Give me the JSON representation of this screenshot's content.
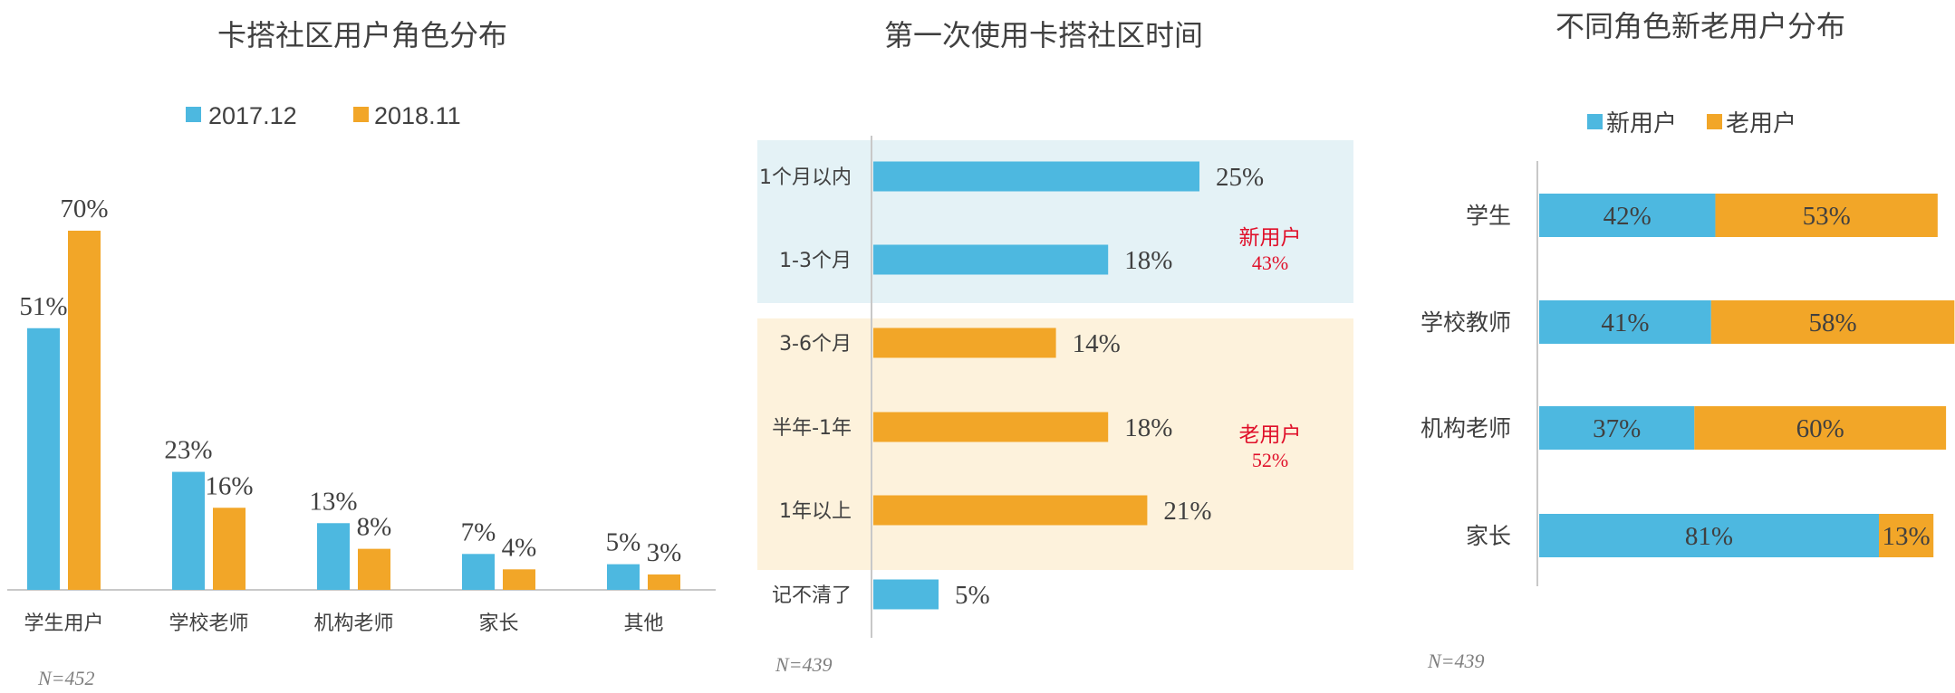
{
  "colors": {
    "blue": "#4db8e0",
    "orange": "#f2a628",
    "red": "#e0102a",
    "band_new": "#e4f2f6",
    "band_old": "#fdf2dc",
    "axis": "#c8c8c8",
    "text": "#404040"
  },
  "chart_data": [
    {
      "type": "bar",
      "title": "卡搭社区用户角色分布",
      "categories": [
        "学生用户",
        "学校老师",
        "机构老师",
        "家长",
        "其他"
      ],
      "series": [
        {
          "name": "2017.12",
          "values": [
            51,
            23,
            13,
            7,
            5
          ],
          "labels": [
            "51%",
            "23%",
            "13%",
            "7%",
            "5%"
          ],
          "color": "#4db8e0"
        },
        {
          "name": "2018.11",
          "values": [
            70,
            16,
            8,
            4,
            3
          ],
          "labels": [
            "70%",
            "16%",
            "8%",
            "4%",
            "3%"
          ],
          "color": "#f2a628"
        }
      ],
      "ylim": [
        0,
        70
      ],
      "grid": false,
      "legend": "top",
      "note": "N=452"
    },
    {
      "type": "bar",
      "orientation": "horizontal",
      "title": "第一次使用卡搭社区时间",
      "categories": [
        "1个月以内",
        "1-3个月",
        "3-6个月",
        "半年-1年",
        "1年以上",
        "记不清了"
      ],
      "values": [
        25,
        18,
        14,
        18,
        21,
        5
      ],
      "labels": [
        "25%",
        "18%",
        "14%",
        "18%",
        "21%",
        "5%"
      ],
      "groups": [
        {
          "name": "新用户",
          "value": "43%",
          "members": [
            0,
            1
          ],
          "color": "#4db8e0"
        },
        {
          "name": "老用户",
          "value": "52%",
          "members": [
            2,
            3,
            4
          ],
          "color": "#f2a628"
        }
      ],
      "other_color": "#4db8e0",
      "xlim": [
        0,
        25
      ],
      "grid": false,
      "note": "N=439"
    },
    {
      "type": "bar",
      "orientation": "horizontal",
      "stacked": true,
      "title": "不同角色新老用户分布",
      "categories": [
        "学生",
        "学校教师",
        "机构老师",
        "家长"
      ],
      "series": [
        {
          "name": "新用户",
          "values": [
            42,
            41,
            37,
            81
          ],
          "labels": [
            "42%",
            "41%",
            "37%",
            "81%"
          ],
          "color": "#4db8e0"
        },
        {
          "name": "老用户",
          "values": [
            53,
            58,
            60,
            13
          ],
          "labels": [
            "53%",
            "58%",
            "60%",
            "13%"
          ],
          "color": "#f2a628"
        }
      ],
      "legend": "top",
      "grid": false,
      "note": "N=439"
    }
  ]
}
